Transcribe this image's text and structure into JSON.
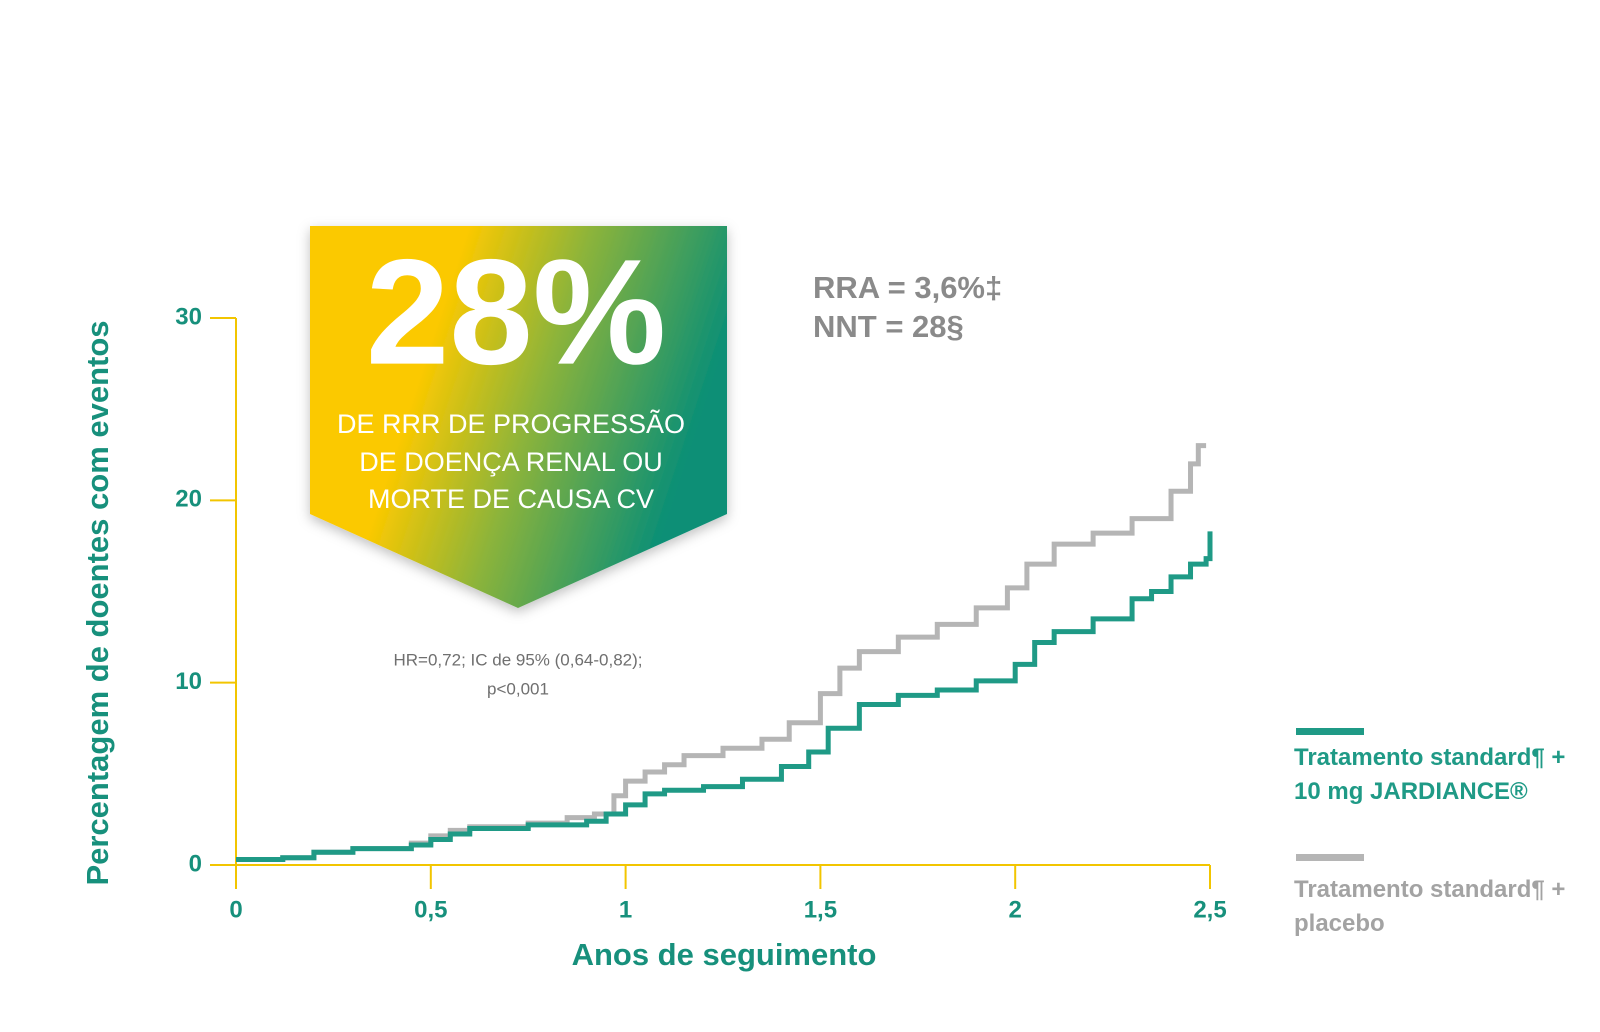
{
  "chart_data": {
    "type": "step",
    "banner_value": "28%",
    "banner_text": [
      "DE RRR DE PROGRESSÃO",
      "DE DOENÇA RENAL OU",
      "MORTE DE CAUSA CV"
    ],
    "annotations": [
      "RRA = 3,6%‡",
      "NNT = 28§"
    ],
    "footnote": [
      "HR=0,72; IC de 95% (0,64-0,82);",
      "p<0,001"
    ],
    "x_label": "Anos de seguimento",
    "y_label": "Percentagem de doentes com eventos",
    "xlim": [
      0,
      2.5
    ],
    "ylim": [
      0,
      30
    ],
    "xticks": [
      0,
      {
        "value": 0.5,
        "label": "0,5"
      },
      1,
      {
        "value": 1.5,
        "label": "1,5"
      },
      2,
      {
        "value": 2.5,
        "label": "2,5"
      }
    ],
    "yticks": [
      0,
      10,
      20,
      30
    ],
    "axis_color": "#f2c500",
    "label_color": "#17907c",
    "series": [
      {
        "name": "Tratamento standard¶ + 10 mg JARDIANCE®",
        "color": "#1f9a86",
        "x": [
          0,
          0.12,
          0.2,
          0.3,
          0.45,
          0.5,
          0.55,
          0.6,
          0.75,
          0.9,
          0.95,
          1.0,
          1.05,
          1.1,
          1.2,
          1.3,
          1.4,
          1.47,
          1.52,
          1.6,
          1.7,
          1.8,
          1.9,
          2.0,
          2.05,
          2.1,
          2.2,
          2.3,
          2.35,
          2.4,
          2.45,
          2.49,
          2.5
        ],
        "values": [
          0.3,
          0.4,
          0.7,
          0.9,
          1.1,
          1.4,
          1.7,
          2.0,
          2.2,
          2.4,
          2.8,
          3.3,
          3.9,
          4.1,
          4.3,
          4.7,
          5.4,
          6.2,
          7.5,
          8.8,
          9.3,
          9.6,
          10.1,
          11.0,
          12.2,
          12.8,
          13.5,
          14.6,
          15.0,
          15.8,
          16.5,
          16.8,
          18.3
        ]
      },
      {
        "name": "Tratamento standard¶ + placebo",
        "color": "#b5b5b5",
        "x": [
          0,
          0.12,
          0.2,
          0.3,
          0.45,
          0.5,
          0.55,
          0.6,
          0.75,
          0.85,
          0.92,
          0.97,
          1.0,
          1.05,
          1.1,
          1.15,
          1.25,
          1.35,
          1.42,
          1.5,
          1.55,
          1.6,
          1.7,
          1.8,
          1.9,
          1.98,
          2.03,
          2.1,
          2.2,
          2.3,
          2.4,
          2.45,
          2.47,
          2.49
        ],
        "values": [
          0.3,
          0.4,
          0.7,
          0.9,
          1.2,
          1.6,
          1.9,
          2.1,
          2.3,
          2.6,
          2.8,
          3.8,
          4.6,
          5.1,
          5.5,
          6.0,
          6.4,
          6.9,
          7.8,
          9.4,
          10.8,
          11.7,
          12.5,
          13.2,
          14.1,
          15.2,
          16.5,
          17.6,
          18.2,
          19.0,
          20.5,
          22.0,
          23.0,
          23.0
        ]
      }
    ]
  }
}
